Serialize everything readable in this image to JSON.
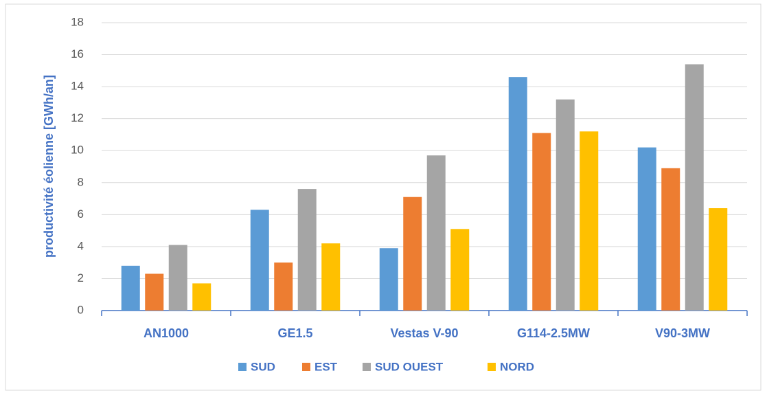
{
  "chart_data": {
    "type": "bar",
    "y_label": "productivité éolienne [GWh/an]",
    "categories": [
      "AN1000",
      "GE1.5",
      "Vestas V-90",
      "G114-2.5MW",
      "V90-3MW"
    ],
    "series": [
      {
        "name": "SUD",
        "color": "#5b9bd5",
        "values": [
          2.8,
          6.3,
          3.9,
          14.6,
          10.2
        ]
      },
      {
        "name": "EST",
        "color": "#ed7d31",
        "values": [
          2.3,
          3.0,
          7.1,
          11.1,
          8.9
        ]
      },
      {
        "name": "SUD OUEST",
        "color": "#a5a5a5",
        "values": [
          4.1,
          7.6,
          9.7,
          13.2,
          15.4
        ]
      },
      {
        "name": "NORD",
        "color": "#ffc000",
        "values": [
          1.7,
          4.2,
          5.1,
          11.2,
          6.4
        ]
      }
    ],
    "ylim": [
      0,
      18
    ],
    "yticks": [
      0,
      2,
      4,
      6,
      8,
      10,
      12,
      14,
      16,
      18
    ],
    "grid": true,
    "legend": "bottom"
  }
}
